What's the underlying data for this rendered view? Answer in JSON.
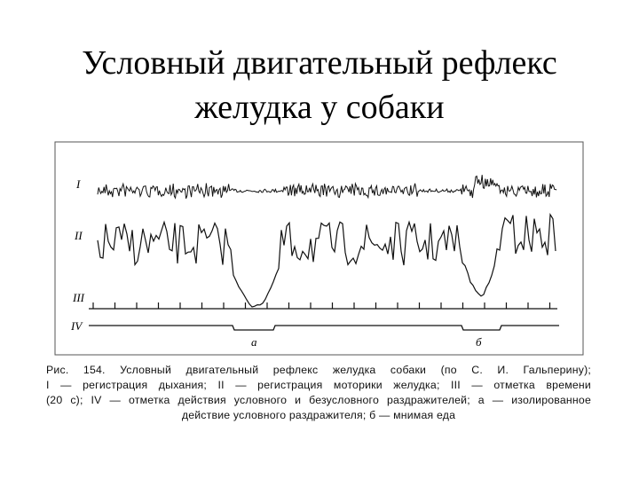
{
  "title": "Условный двигательный рефлекс желудка у собаки",
  "figure": {
    "trace_labels": [
      "I",
      "II",
      "III",
      "IV"
    ],
    "mark_labels": [
      "а",
      "б"
    ],
    "caption": [
      "Рис. 154. Условный двигательный рефлекс желудка собаки (по С. И. Гальперину);",
      "I — регистрация дыхания; II — регистрация моторики желудка; III — отметка времени",
      "(20 с); IV — отметка действия условного и безусловного раздражителей; а — изолированное",
      "действие условного раздражителя; б — мнимая еда"
    ]
  }
}
